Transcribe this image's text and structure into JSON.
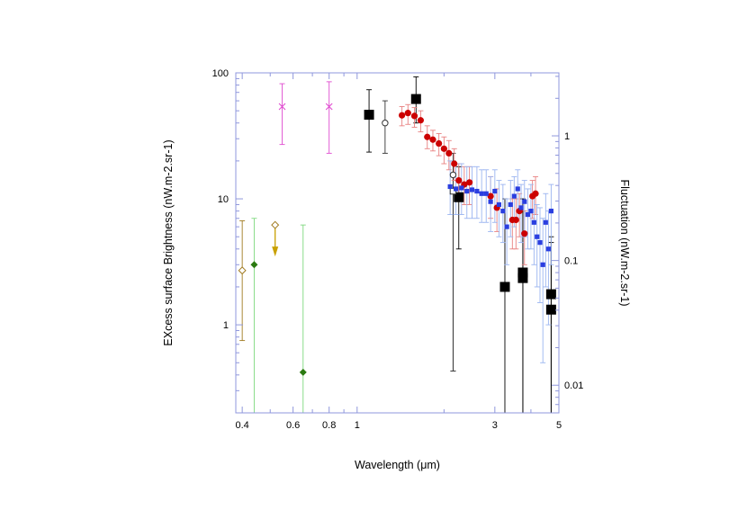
{
  "chart_data": {
    "type": "scatter",
    "title": "",
    "xlabel": "Wavelength (μm)",
    "ylabel_left": "EXcess surface Brightness (nW.m-2.sr-1)",
    "ylabel_right": "Fluctuation (nW.m-2.sr-1)",
    "x_scale": "log",
    "y_scale": "log",
    "xlim": [
      0.38,
      5.0
    ],
    "ylim_left": [
      0.2,
      100
    ],
    "ylim_right": [
      0.006,
      3.2
    ],
    "x_ticks": [
      {
        "value": 0.4,
        "label": "0.4"
      },
      {
        "value": 0.6,
        "label": "0.6"
      },
      {
        "value": 0.8,
        "label": "0.8"
      },
      {
        "value": 1,
        "label": "1"
      },
      {
        "value": 3,
        "label": "3"
      },
      {
        "value": 5,
        "label": "5"
      }
    ],
    "y_left_ticks": [
      {
        "value": 1,
        "label": "1"
      },
      {
        "value": 10,
        "label": "10"
      },
      {
        "value": 100,
        "label": "100"
      }
    ],
    "y_right_ticks": [
      {
        "value": 0.01,
        "label": "0.01"
      },
      {
        "value": 0.1,
        "label": "0.1"
      },
      {
        "value": 1,
        "label": "1"
      }
    ],
    "grid": false,
    "colors": {
      "axes": "#8f97dc",
      "black_squares": "#000000",
      "open_circles": "#333333",
      "pink_crosses": "#e04cd0",
      "red_circles": "#cc0000",
      "red_errorbars": "#e88080",
      "blue_squares": "#2a3ee0",
      "blue_errorbars": "#9ab4f0",
      "green_diamonds": "#2a7a10",
      "green_errorbars": "#7ed87e",
      "open_diamonds": "#a07a20",
      "arrow": "#c8a000"
    },
    "series": [
      {
        "marker": "filled-square-black",
        "axis": "left",
        "points": [
          {
            "x": 1.1,
            "y": 46.5,
            "lo": 23.5,
            "hi": 73.5
          },
          {
            "x": 1.6,
            "y": 62.0,
            "lo": 40.0,
            "hi": 93.0
          },
          {
            "x": 2.25,
            "y": 10.3,
            "lo": 4.0,
            "hi": 18.0
          },
          {
            "x": 3.25,
            "y": 2.0,
            "lo": 0.2,
            "hi": 10.0
          },
          {
            "x": 3.75,
            "y": 2.6,
            "lo": 0.2,
            "hi": 10.0
          },
          {
            "x": 3.75,
            "y": 2.35,
            "lo": 0.2,
            "hi": 8.0
          },
          {
            "x": 4.7,
            "y": 1.75,
            "lo": 0.2,
            "hi": 5.0
          },
          {
            "x": 4.7,
            "y": 1.32,
            "lo": 0.2,
            "hi": 4.5
          }
        ]
      },
      {
        "marker": "open-circle-black",
        "axis": "left",
        "points": [
          {
            "x": 1.25,
            "y": 40.0,
            "lo": 23.0,
            "hi": 60.0
          },
          {
            "x": 2.15,
            "y": 15.5,
            "lo": 0.43,
            "hi": 23.0
          }
        ]
      },
      {
        "marker": "open-square-black",
        "axis": "left",
        "points": [
          {
            "x": 2.15,
            "y": 11.5,
            "lo": 0.43,
            "hi": 20.0
          }
        ]
      },
      {
        "marker": "cross-pink",
        "axis": "left",
        "points": [
          {
            "x": 0.55,
            "y": 54.0,
            "lo": 27.0,
            "hi": 82.0
          },
          {
            "x": 0.8,
            "y": 54.0,
            "lo": 23.0,
            "hi": 85.0
          }
        ]
      },
      {
        "marker": "filled-circle-red",
        "axis": "left",
        "points": [
          {
            "x": 1.43,
            "y": 46.0,
            "lo": 38.0,
            "hi": 54.0
          },
          {
            "x": 1.5,
            "y": 48.0,
            "lo": 39.0,
            "hi": 56.0
          },
          {
            "x": 1.58,
            "y": 45.5,
            "lo": 37.0,
            "hi": 53.0
          },
          {
            "x": 1.66,
            "y": 42.0,
            "lo": 34.0,
            "hi": 50.0
          },
          {
            "x": 1.75,
            "y": 31.0,
            "lo": 25.0,
            "hi": 38.0
          },
          {
            "x": 1.83,
            "y": 29.5,
            "lo": 24.0,
            "hi": 35.0
          },
          {
            "x": 1.92,
            "y": 27.5,
            "lo": 22.0,
            "hi": 33.0
          },
          {
            "x": 2.0,
            "y": 25.0,
            "lo": 19.0,
            "hi": 31.0
          },
          {
            "x": 2.08,
            "y": 23.0,
            "lo": 17.0,
            "hi": 29.0
          },
          {
            "x": 2.17,
            "y": 19.0,
            "lo": 14.0,
            "hi": 25.0
          },
          {
            "x": 2.25,
            "y": 14.0,
            "lo": 10.0,
            "hi": 19.0
          },
          {
            "x": 2.35,
            "y": 13.0,
            "lo": 9.0,
            "hi": 18.0
          },
          {
            "x": 2.45,
            "y": 13.5,
            "lo": 9.0,
            "hi": 18.0
          },
          {
            "x": 2.9,
            "y": 10.5,
            "lo": 7.0,
            "hi": 15.0
          },
          {
            "x": 3.05,
            "y": 8.5,
            "lo": 5.5,
            "hi": 12.0
          },
          {
            "x": 3.45,
            "y": 6.8,
            "lo": 4.0,
            "hi": 10.0
          },
          {
            "x": 3.55,
            "y": 6.8,
            "lo": 4.0,
            "hi": 10.0
          },
          {
            "x": 3.65,
            "y": 8.0,
            "lo": 5.0,
            "hi": 11.0
          },
          {
            "x": 3.8,
            "y": 5.3,
            "lo": 3.0,
            "hi": 8.0
          },
          {
            "x": 4.05,
            "y": 10.5,
            "lo": 7.0,
            "hi": 14.0
          },
          {
            "x": 4.15,
            "y": 11.0,
            "lo": 7.5,
            "hi": 15.0
          }
        ]
      },
      {
        "marker": "filled-square-blue",
        "axis": "left",
        "points": [
          {
            "x": 2.1,
            "y": 12.5,
            "lo": 7.5,
            "hi": 20.0
          },
          {
            "x": 2.2,
            "y": 12.0,
            "lo": 7.5,
            "hi": 19.0
          },
          {
            "x": 2.3,
            "y": 12.2,
            "lo": 7.5,
            "hi": 19.0
          },
          {
            "x": 2.4,
            "y": 11.5,
            "lo": 7.0,
            "hi": 18.0
          },
          {
            "x": 2.5,
            "y": 11.8,
            "lo": 7.0,
            "hi": 18.0
          },
          {
            "x": 2.6,
            "y": 11.5,
            "lo": 7.0,
            "hi": 18.0
          },
          {
            "x": 2.7,
            "y": 11.0,
            "lo": 6.5,
            "hi": 17.0
          },
          {
            "x": 2.8,
            "y": 11.0,
            "lo": 6.5,
            "hi": 17.0
          },
          {
            "x": 2.9,
            "y": 9.5,
            "lo": 5.5,
            "hi": 15.0
          },
          {
            "x": 3.0,
            "y": 11.5,
            "lo": 6.5,
            "hi": 17.0
          },
          {
            "x": 3.1,
            "y": 9.0,
            "lo": 5.0,
            "hi": 14.0
          },
          {
            "x": 3.2,
            "y": 8.0,
            "lo": 4.5,
            "hi": 13.0
          },
          {
            "x": 3.3,
            "y": 6.0,
            "lo": 3.0,
            "hi": 10.0
          },
          {
            "x": 3.4,
            "y": 9.0,
            "lo": 5.0,
            "hi": 14.0
          },
          {
            "x": 3.5,
            "y": 10.5,
            "lo": 6.0,
            "hi": 15.0
          },
          {
            "x": 3.6,
            "y": 12.0,
            "lo": 7.0,
            "hi": 17.0
          },
          {
            "x": 3.7,
            "y": 8.5,
            "lo": 4.5,
            "hi": 13.0
          },
          {
            "x": 3.8,
            "y": 9.5,
            "lo": 5.0,
            "hi": 14.0
          },
          {
            "x": 3.9,
            "y": 7.5,
            "lo": 4.0,
            "hi": 12.0
          },
          {
            "x": 4.0,
            "y": 8.0,
            "lo": 4.0,
            "hi": 13.0
          },
          {
            "x": 4.1,
            "y": 6.5,
            "lo": 3.0,
            "hi": 11.0
          },
          {
            "x": 4.2,
            "y": 5.0,
            "lo": 2.0,
            "hi": 9.0
          },
          {
            "x": 4.3,
            "y": 4.5,
            "lo": 1.5,
            "hi": 8.5
          },
          {
            "x": 4.4,
            "y": 3.0,
            "lo": 0.5,
            "hi": 7.0
          },
          {
            "x": 4.5,
            "y": 6.5,
            "lo": 2.0,
            "hi": 11.0
          },
          {
            "x": 4.6,
            "y": 4.0,
            "lo": 1.0,
            "hi": 8.0
          },
          {
            "x": 4.7,
            "y": 8.0,
            "lo": 3.0,
            "hi": 13.0
          }
        ]
      },
      {
        "marker": "filled-diamond-green",
        "axis": "left",
        "points": [
          {
            "x": 0.44,
            "y": 3.0,
            "lo": 0.2,
            "hi": 7.0
          },
          {
            "x": 0.65,
            "y": 0.42,
            "lo": 0.2,
            "hi": 6.2
          }
        ]
      },
      {
        "marker": "open-diamond-olive",
        "axis": "left",
        "points": [
          {
            "x": 0.4,
            "y": 2.7,
            "lo": 0.75,
            "hi": 6.7
          },
          {
            "x": 0.52,
            "y": 6.2,
            "upper_limit": true
          }
        ]
      }
    ]
  }
}
